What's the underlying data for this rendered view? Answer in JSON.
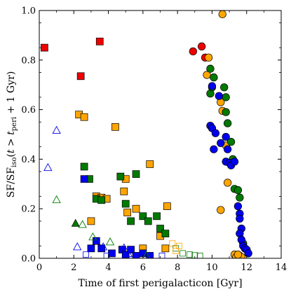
{
  "chart_data": {
    "type": "scatter",
    "title": "",
    "xlabel": "Time of first perigalacticon [Gyr]",
    "ylabel_parts": {
      "main": "SF/SF",
      "sub1": "iso",
      "mid": "(",
      "t1": "t",
      "gt": " > ",
      "t2": "t",
      "sub2": "peri",
      "tail": " + 1 Gyr)"
    },
    "xlim": [
      0,
      14
    ],
    "ylim": [
      0,
      1.0
    ],
    "x_ticks": [
      0,
      2,
      4,
      6,
      8,
      10,
      12,
      14
    ],
    "y_ticks": [
      0.0,
      0.2,
      0.4,
      0.6,
      0.8,
      1.0
    ],
    "x_tick_labels": [
      "0",
      "2",
      "4",
      "6",
      "8",
      "10",
      "12",
      "14"
    ],
    "y_tick_labels": [
      "0.0",
      "0.2",
      "0.4",
      "0.6",
      "0.8",
      "1.0"
    ],
    "grid": false,
    "colors": {
      "red": "#ee0000",
      "orange": "#ffa500",
      "green": "#007a00",
      "blue": "#0000ee",
      "outline": "#000000"
    },
    "series": [
      {
        "color": "red",
        "marker": "square",
        "fill": "filled",
        "points": [
          [
            0.3,
            0.85
          ],
          [
            2.4,
            0.735
          ],
          [
            3.5,
            0.875
          ]
        ]
      },
      {
        "color": "orange",
        "marker": "square",
        "fill": "filled",
        "points": [
          [
            2.3,
            0.58
          ],
          [
            2.6,
            0.57
          ],
          [
            4.4,
            0.53
          ],
          [
            3.0,
            0.15
          ],
          [
            3.3,
            0.25
          ],
          [
            3.6,
            0.245
          ],
          [
            3.9,
            0.24
          ],
          [
            4.9,
            0.27
          ],
          [
            5.1,
            0.185
          ],
          [
            5.6,
            0.2
          ],
          [
            6.4,
            0.38
          ],
          [
            5.0,
            0.32
          ],
          [
            7.0,
            0.09
          ],
          [
            7.4,
            0.21
          ],
          [
            7.3,
            0.04
          ],
          [
            6.0,
            0.04
          ]
        ]
      },
      {
        "color": "green",
        "marker": "square",
        "fill": "filled",
        "points": [
          [
            2.6,
            0.37
          ],
          [
            2.9,
            0.32
          ],
          [
            3.3,
            0.24
          ],
          [
            3.6,
            0.235
          ],
          [
            4.7,
            0.33
          ],
          [
            5.0,
            0.22
          ],
          [
            5.3,
            0.15
          ],
          [
            5.6,
            0.34
          ],
          [
            6.0,
            0.17
          ],
          [
            6.3,
            0.15
          ],
          [
            6.8,
            0.17
          ],
          [
            7.0,
            0.12
          ],
          [
            7.3,
            0.1
          ]
        ]
      },
      {
        "color": "blue",
        "marker": "square",
        "fill": "filled",
        "points": [
          [
            2.6,
            0.32
          ],
          [
            3.0,
            0.04
          ],
          [
            3.3,
            0.07
          ],
          [
            3.6,
            0.04
          ],
          [
            4.2,
            0.02
          ],
          [
            4.8,
            0.035
          ],
          [
            5.0,
            0.015
          ],
          [
            5.3,
            0.035
          ],
          [
            5.6,
            0.01
          ],
          [
            6.0,
            0.02
          ],
          [
            6.4,
            0.01
          ]
        ]
      },
      {
        "color": "green",
        "marker": "square",
        "fill": "open",
        "points": [
          [
            7.9,
            0.04
          ],
          [
            8.3,
            0.02
          ],
          [
            8.7,
            0.015
          ],
          [
            9.0,
            0.012
          ],
          [
            9.3,
            0.01
          ]
        ]
      },
      {
        "color": "orange",
        "marker": "square",
        "fill": "open",
        "points": [
          [
            7.7,
            0.06
          ],
          [
            7.9,
            0.03
          ],
          [
            8.1,
            0.05
          ]
        ]
      },
      {
        "color": "blue",
        "marker": "square",
        "fill": "open",
        "points": [
          [
            2.7,
            0.015
          ],
          [
            3.9,
            0.01
          ],
          [
            7.1,
            0.01
          ]
        ]
      },
      {
        "color": "blue",
        "marker": "triangle",
        "fill": "open",
        "points": [
          [
            0.5,
            0.365
          ],
          [
            1.0,
            0.515
          ],
          [
            2.2,
            0.045
          ],
          [
            3.7,
            0.045
          ]
        ]
      },
      {
        "color": "green",
        "marker": "triangle",
        "fill": "open",
        "points": [
          [
            1.0,
            0.235
          ],
          [
            2.5,
            0.135
          ],
          [
            3.1,
            0.085
          ],
          [
            4.1,
            0.065
          ],
          [
            6.2,
            0.01
          ]
        ]
      },
      {
        "color": "green",
        "marker": "triangle",
        "fill": "filled",
        "points": [
          [
            2.1,
            0.14
          ]
        ]
      },
      {
        "color": "blue",
        "marker": "triangle",
        "fill": "open-small",
        "points": [
          [
            4.9,
            0.045
          ],
          [
            5.2,
            0.015
          ]
        ]
      },
      {
        "color": "red",
        "marker": "circle",
        "fill": "filled",
        "points": [
          [
            8.9,
            0.835
          ],
          [
            9.4,
            0.855
          ],
          [
            9.6,
            0.81
          ]
        ]
      },
      {
        "color": "orange",
        "marker": "circle",
        "fill": "filled",
        "points": [
          [
            10.6,
            0.985
          ],
          [
            9.8,
            0.81
          ],
          [
            9.7,
            0.74
          ],
          [
            10.5,
            0.63
          ],
          [
            10.6,
            0.595
          ],
          [
            10.8,
            0.455
          ],
          [
            10.9,
            0.305
          ],
          [
            10.5,
            0.195
          ],
          [
            11.3,
            0.015
          ],
          [
            11.4,
            0.005
          ],
          [
            11.6,
            0.01
          ],
          [
            11.7,
            0.005
          ],
          [
            11.5,
            0.015
          ]
        ]
      },
      {
        "color": "green",
        "marker": "circle",
        "fill": "filled",
        "points": [
          [
            9.9,
            0.765
          ],
          [
            9.9,
            0.665
          ],
          [
            10.1,
            0.73
          ],
          [
            10.0,
            0.69
          ],
          [
            10.7,
            0.69
          ],
          [
            10.8,
            0.65
          ],
          [
            10.8,
            0.59
          ],
          [
            10.9,
            0.545
          ],
          [
            11.1,
            0.47
          ],
          [
            11.2,
            0.4
          ],
          [
            11.3,
            0.28
          ],
          [
            11.5,
            0.275
          ],
          [
            11.6,
            0.245
          ],
          [
            11.8,
            0.06
          ],
          [
            11.9,
            0.04
          ]
        ]
      },
      {
        "color": "blue",
        "marker": "circle",
        "fill": "filled",
        "points": [
          [
            10.0,
            0.695
          ],
          [
            10.4,
            0.655
          ],
          [
            9.9,
            0.535
          ],
          [
            10.0,
            0.525
          ],
          [
            10.2,
            0.505
          ],
          [
            10.5,
            0.465
          ],
          [
            10.1,
            0.44
          ],
          [
            10.8,
            0.49
          ],
          [
            10.9,
            0.44
          ],
          [
            10.8,
            0.39
          ],
          [
            11.0,
            0.385
          ],
          [
            11.1,
            0.375
          ],
          [
            11.3,
            0.39
          ],
          [
            11.5,
            0.21
          ],
          [
            11.6,
            0.18
          ],
          [
            11.6,
            0.16
          ],
          [
            11.7,
            0.12
          ],
          [
            11.6,
            0.1
          ],
          [
            11.7,
            0.075
          ],
          [
            11.8,
            0.05
          ],
          [
            11.9,
            0.04
          ],
          [
            12.0,
            0.035
          ],
          [
            12.1,
            0.02
          ]
        ]
      }
    ]
  }
}
